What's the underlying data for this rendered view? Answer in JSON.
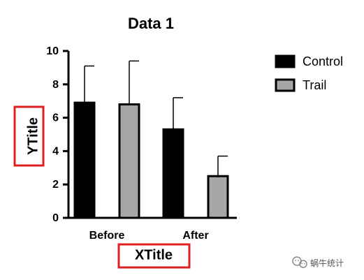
{
  "chart_data": {
    "type": "bar",
    "title": "Data 1",
    "categories": [
      "Before",
      "After"
    ],
    "series": [
      {
        "name": "Control",
        "values": [
          6.9,
          5.3
        ],
        "errors": [
          2.2,
          1.9
        ],
        "color": "#000000"
      },
      {
        "name": "Trail",
        "values": [
          6.8,
          2.5
        ],
        "errors": [
          2.6,
          1.2
        ],
        "color": "#a6a6a6"
      }
    ],
    "xlabel": "XTitle",
    "ylabel": "YTitle",
    "ylim": [
      0,
      10
    ],
    "yticks": [
      "0",
      "2",
      "4",
      "6",
      "8",
      "10"
    ],
    "legend_position": "top-right",
    "grid": false
  },
  "annotations": {
    "label_highlight_color": "#e02020"
  },
  "watermark": {
    "text": "蜗牛统计"
  }
}
